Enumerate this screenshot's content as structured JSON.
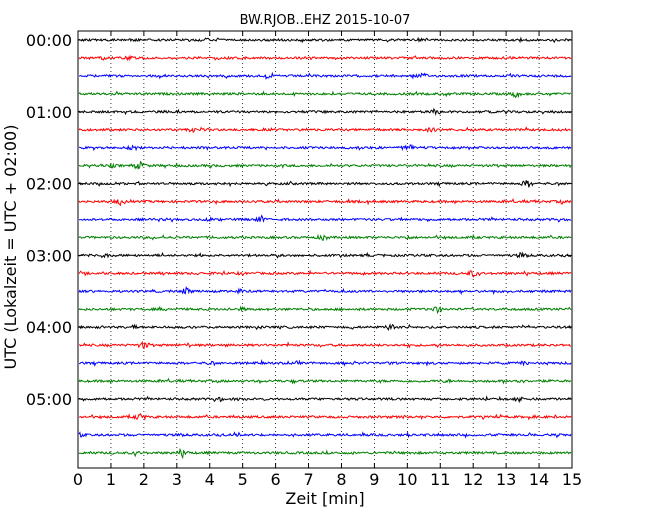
{
  "chart_data": {
    "type": "line",
    "title": "BW.RJOB..EHZ 2015-10-07",
    "xlabel": "Zeit  [min]",
    "ylabel": "UTC (Lokalzeit = UTC + 02:00)",
    "xlim": [
      0,
      15
    ],
    "x_ticks": [
      "0",
      "1",
      "2",
      "3",
      "4",
      "5",
      "6",
      "7",
      "8",
      "9",
      "10",
      "11",
      "12",
      "13",
      "14",
      "15"
    ],
    "y_ticks": [
      "00:00",
      "01:00",
      "02:00",
      "03:00",
      "04:00",
      "05:00"
    ],
    "grid": "vertical dotted",
    "trace_colors": [
      "#000000",
      "#ff0000",
      "#0000ff",
      "#008000"
    ],
    "traces": [
      {
        "start": "00:00",
        "color": "#000000"
      },
      {
        "start": "00:15",
        "color": "#ff0000"
      },
      {
        "start": "00:30",
        "color": "#0000ff"
      },
      {
        "start": "00:45",
        "color": "#008000"
      },
      {
        "start": "01:00",
        "color": "#000000"
      },
      {
        "start": "01:15",
        "color": "#ff0000"
      },
      {
        "start": "01:30",
        "color": "#0000ff"
      },
      {
        "start": "01:45",
        "color": "#008000"
      },
      {
        "start": "02:00",
        "color": "#000000"
      },
      {
        "start": "02:15",
        "color": "#ff0000"
      },
      {
        "start": "02:30",
        "color": "#0000ff"
      },
      {
        "start": "02:45",
        "color": "#008000"
      },
      {
        "start": "03:00",
        "color": "#000000"
      },
      {
        "start": "03:15",
        "color": "#ff0000"
      },
      {
        "start": "03:30",
        "color": "#0000ff"
      },
      {
        "start": "03:45",
        "color": "#008000"
      },
      {
        "start": "04:00",
        "color": "#000000"
      },
      {
        "start": "04:15",
        "color": "#ff0000"
      },
      {
        "start": "04:30",
        "color": "#0000ff"
      },
      {
        "start": "04:45",
        "color": "#008000"
      },
      {
        "start": "05:00",
        "color": "#000000"
      },
      {
        "start": "05:15",
        "color": "#ff0000"
      },
      {
        "start": "05:30",
        "color": "#0000ff"
      },
      {
        "start": "05:45",
        "color": "#008000"
      }
    ]
  }
}
